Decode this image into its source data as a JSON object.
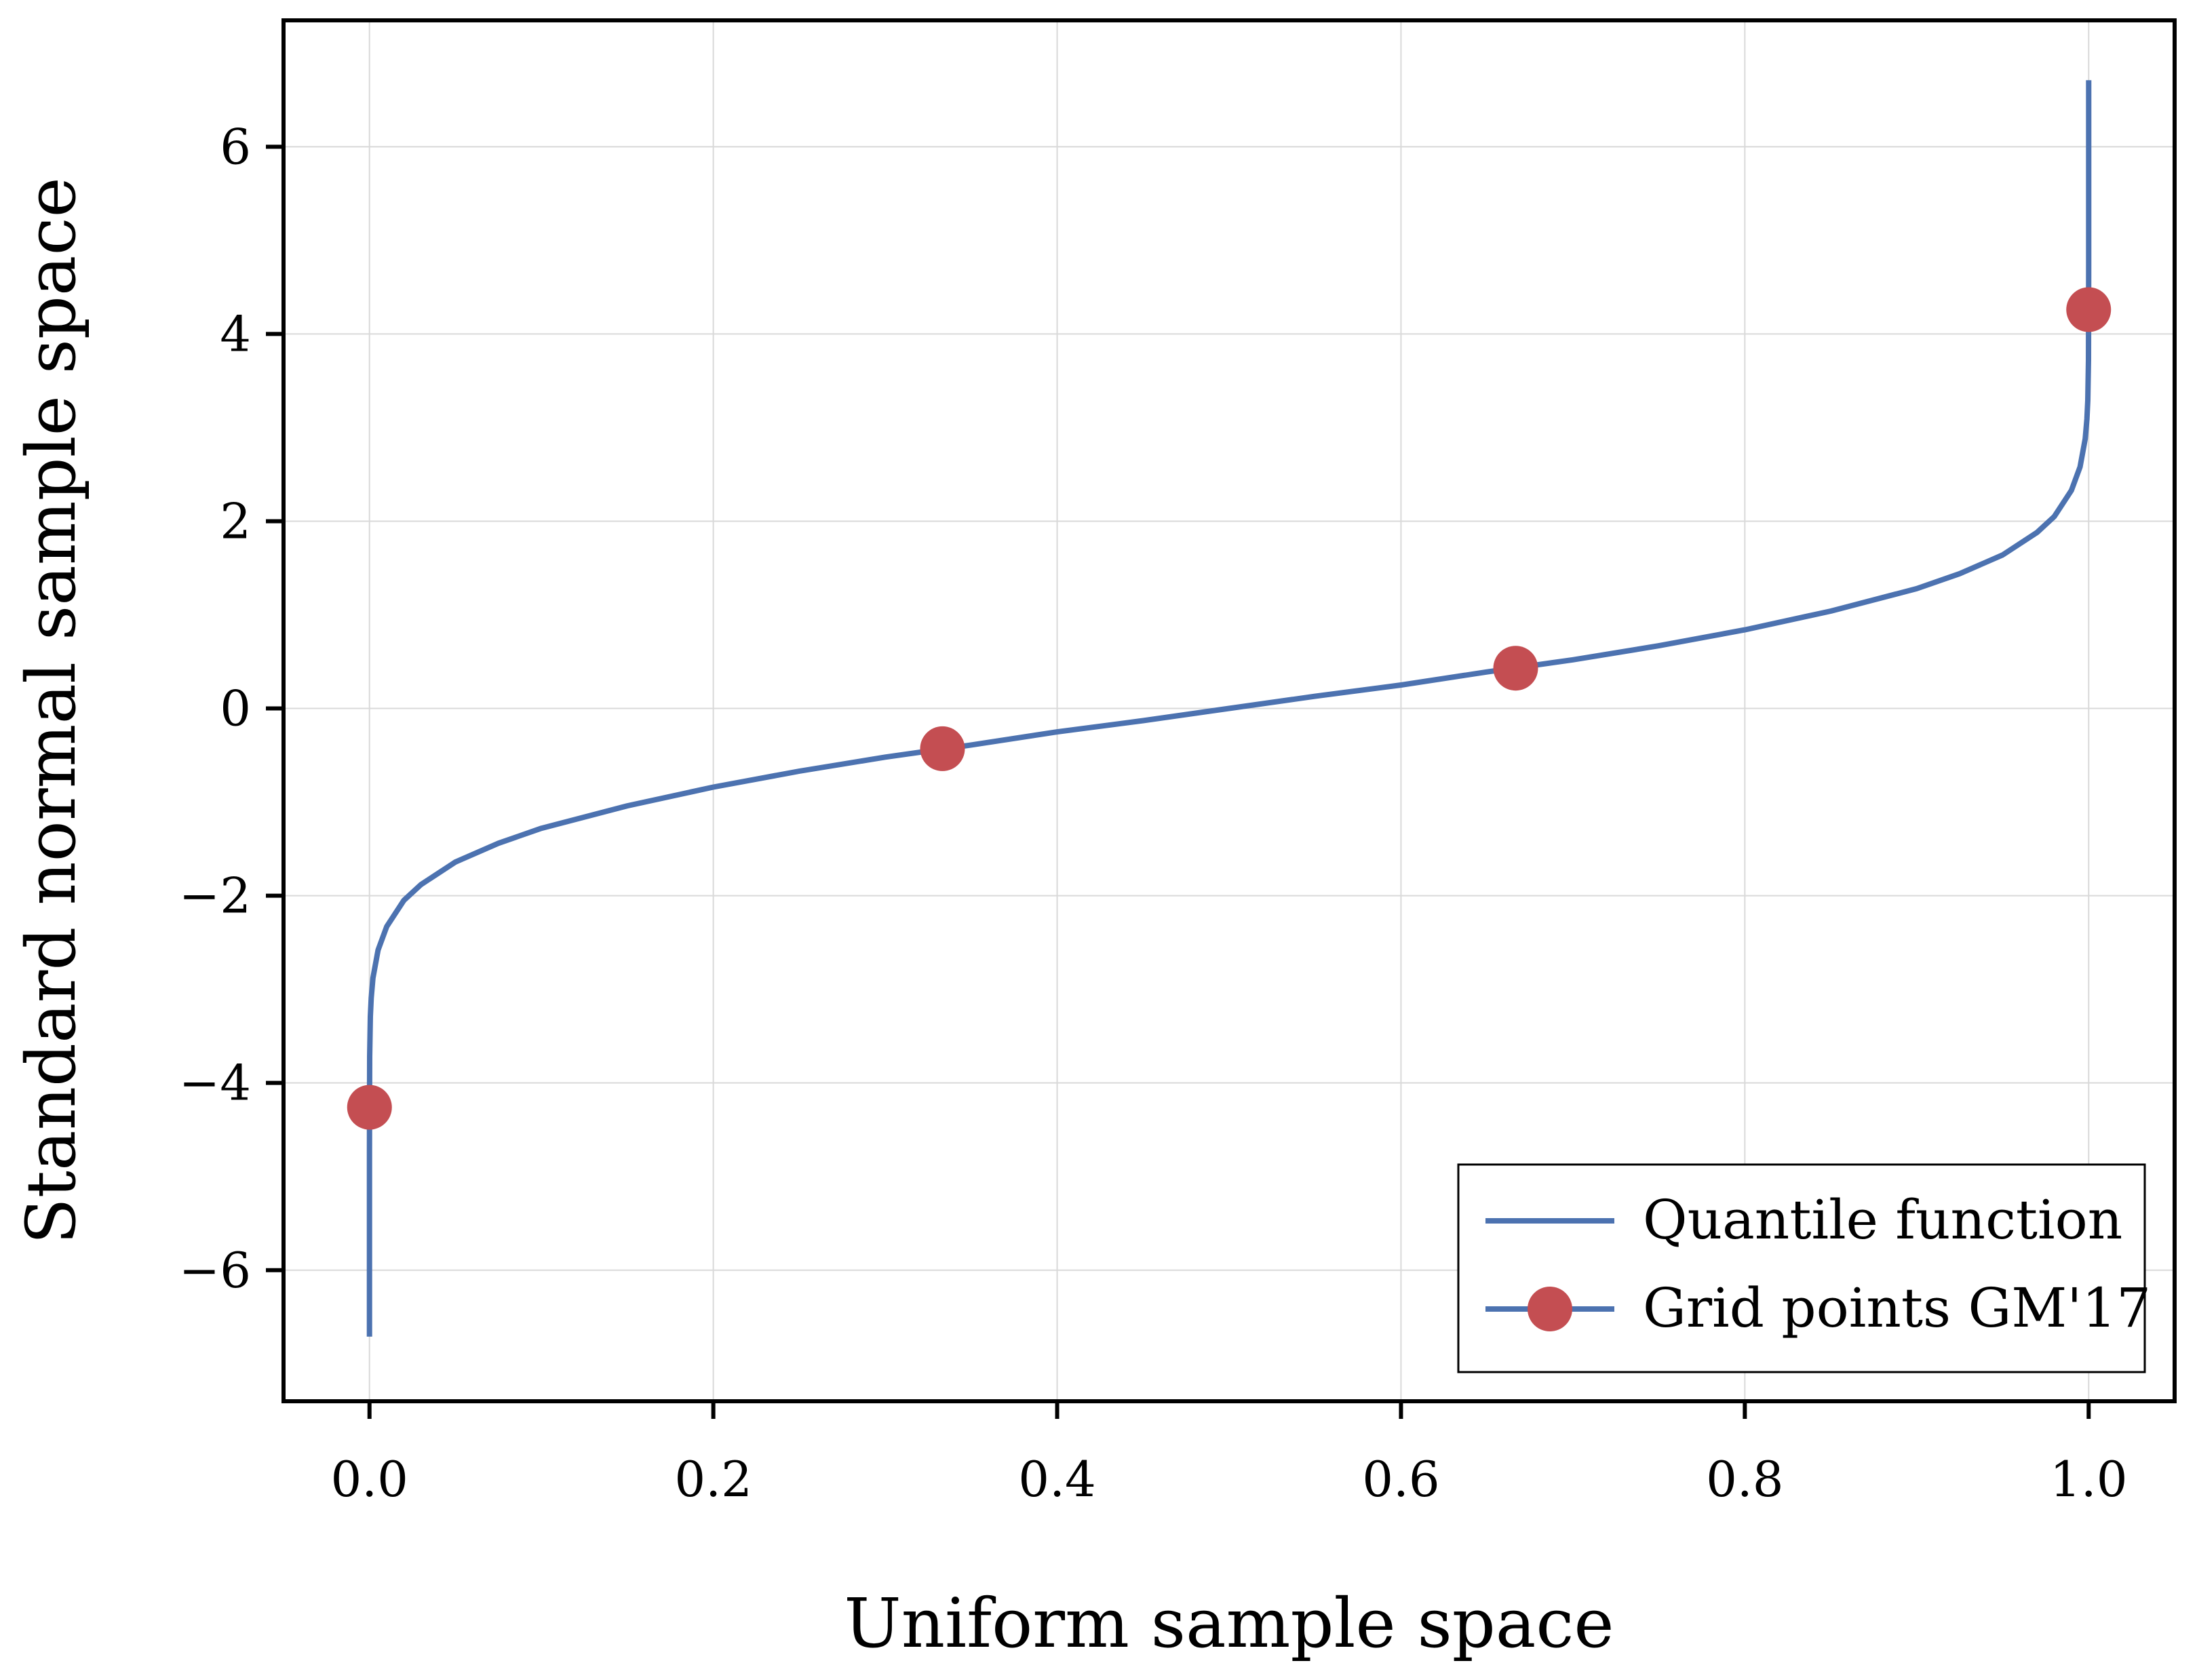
{
  "chart_data": {
    "type": "line",
    "title": "",
    "xlabel": "Uniform sample space",
    "ylabel": "Standard normal sample space",
    "xlim": [
      -0.05,
      1.05
    ],
    "ylim": [
      -7.4,
      7.35
    ],
    "x_ticks": [
      0.0,
      0.2,
      0.4,
      0.6,
      0.8,
      1.0
    ],
    "x_tick_labels": [
      "0.0",
      "0.2",
      "0.4",
      "0.6",
      "0.8",
      "1.0"
    ],
    "y_ticks": [
      -6,
      -4,
      -2,
      0,
      2,
      4,
      6
    ],
    "y_tick_labels": [
      "−6",
      "−4",
      "−2",
      "0",
      "2",
      "4",
      "6"
    ],
    "grid": true,
    "legend_position": "lower-right",
    "series": [
      {
        "name": "Quantile function",
        "style": "line",
        "color": "#4c72b0",
        "x": [
          1e-11,
          1e-09,
          1e-07,
          1e-06,
          1e-05,
          0.0001,
          0.0005,
          0.001,
          0.002,
          0.005,
          0.01,
          0.02,
          0.03,
          0.05,
          0.075,
          0.1,
          0.15,
          0.2,
          0.25,
          0.3,
          0.35,
          0.4,
          0.45,
          0.5,
          0.55,
          0.6,
          0.65,
          0.7,
          0.75,
          0.8,
          0.85,
          0.9,
          0.925,
          0.95,
          0.97,
          0.98,
          0.99,
          0.995,
          0.998,
          0.999,
          0.9995,
          0.9999,
          0.99999,
          0.999999,
          0.9999999,
          0.999999999,
          0.99999999999
        ],
        "y": [
          -6.71,
          -6.0,
          -5.2,
          -4.75,
          -4.26,
          -3.72,
          -3.29,
          -3.09,
          -2.88,
          -2.58,
          -2.33,
          -2.05,
          -1.88,
          -1.64,
          -1.44,
          -1.28,
          -1.04,
          -0.84,
          -0.67,
          -0.52,
          -0.39,
          -0.25,
          -0.13,
          0.0,
          0.13,
          0.25,
          0.39,
          0.52,
          0.67,
          0.84,
          1.04,
          1.28,
          1.44,
          1.64,
          1.88,
          2.05,
          2.33,
          2.58,
          2.88,
          3.09,
          3.29,
          3.72,
          4.26,
          4.75,
          5.2,
          6.0,
          6.71
        ]
      },
      {
        "name": "Grid points GM'17",
        "style": "line+markers",
        "color": "#4c72b0",
        "marker_color": "#c44e52",
        "x": [
          1e-05,
          0.3333,
          0.6667,
          0.99999
        ],
        "y": [
          -4.26,
          -0.43,
          0.43,
          4.26
        ]
      }
    ]
  }
}
